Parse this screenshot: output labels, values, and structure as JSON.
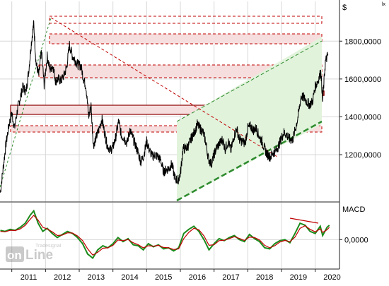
{
  "chart_data": [
    {
      "type": "line",
      "title": "",
      "currency_label": "$",
      "corner_mark": "lx",
      "xlabel": "",
      "ylabel": "",
      "years": [
        "2011",
        "2012",
        "2013",
        "2014",
        "2015",
        "2016",
        "2017",
        "2018",
        "2019",
        "2020"
      ],
      "xlim": [
        2010.65,
        2020.72
      ],
      "ylim": [
        950,
        2010
      ],
      "yticks": [
        1200,
        1400,
        1600,
        1800
      ],
      "ytick_labels": [
        "1200,0000",
        "1400,0000",
        "1600,0000",
        "1800,0000"
      ],
      "grid": true,
      "series": [
        {
          "color": "#000000",
          "points": [
            [
              2010.66,
              1000
            ],
            [
              2010.75,
              1140
            ],
            [
              2010.83,
              1260
            ],
            [
              2010.92,
              1360
            ],
            [
              2011.0,
              1420
            ],
            [
              2011.08,
              1340
            ],
            [
              2011.17,
              1440
            ],
            [
              2011.25,
              1500
            ],
            [
              2011.33,
              1560
            ],
            [
              2011.42,
              1530
            ],
            [
              2011.5,
              1640
            ],
            [
              2011.58,
              1790
            ],
            [
              2011.65,
              1895
            ],
            [
              2011.72,
              1680
            ],
            [
              2011.8,
              1620
            ],
            [
              2011.88,
              1745
            ],
            [
              2011.96,
              1570
            ],
            [
              2012.05,
              1720
            ],
            [
              2012.13,
              1650
            ],
            [
              2012.22,
              1670
            ],
            [
              2012.3,
              1590
            ],
            [
              2012.38,
              1600
            ],
            [
              2012.46,
              1590
            ],
            [
              2012.55,
              1620
            ],
            [
              2012.63,
              1665
            ],
            [
              2012.71,
              1780
            ],
            [
              2012.8,
              1720
            ],
            [
              2012.88,
              1700
            ],
            [
              2012.96,
              1675
            ],
            [
              2013.05,
              1670
            ],
            [
              2013.13,
              1600
            ],
            [
              2013.2,
              1560
            ],
            [
              2013.28,
              1400
            ],
            [
              2013.35,
              1460
            ],
            [
              2013.42,
              1250
            ],
            [
              2013.5,
              1290
            ],
            [
              2013.58,
              1330
            ],
            [
              2013.67,
              1390
            ],
            [
              2013.75,
              1320
            ],
            [
              2013.83,
              1250
            ],
            [
              2013.92,
              1225
            ],
            [
              2014.0,
              1240
            ],
            [
              2014.08,
              1290
            ],
            [
              2014.17,
              1380
            ],
            [
              2014.25,
              1300
            ],
            [
              2014.33,
              1290
            ],
            [
              2014.42,
              1260
            ],
            [
              2014.5,
              1330
            ],
            [
              2014.58,
              1295
            ],
            [
              2014.67,
              1250
            ],
            [
              2014.75,
              1210
            ],
            [
              2014.83,
              1160
            ],
            [
              2014.92,
              1200
            ],
            [
              2015.0,
              1270
            ],
            [
              2015.08,
              1225
            ],
            [
              2015.17,
              1190
            ],
            [
              2015.25,
              1200
            ],
            [
              2015.33,
              1190
            ],
            [
              2015.42,
              1170
            ],
            [
              2015.5,
              1110
            ],
            [
              2015.58,
              1120
            ],
            [
              2015.67,
              1130
            ],
            [
              2015.75,
              1150
            ],
            [
              2015.83,
              1080
            ],
            [
              2015.92,
              1060
            ],
            [
              2016.0,
              1100
            ],
            [
              2016.08,
              1230
            ],
            [
              2016.17,
              1235
            ],
            [
              2016.25,
              1250
            ],
            [
              2016.33,
              1290
            ],
            [
              2016.42,
              1320
            ],
            [
              2016.5,
              1360
            ],
            [
              2016.58,
              1340
            ],
            [
              2016.67,
              1320
            ],
            [
              2016.75,
              1270
            ],
            [
              2016.83,
              1180
            ],
            [
              2016.92,
              1150
            ],
            [
              2017.0,
              1200
            ],
            [
              2017.08,
              1240
            ],
            [
              2017.17,
              1260
            ],
            [
              2017.25,
              1280
            ],
            [
              2017.33,
              1230
            ],
            [
              2017.42,
              1270
            ],
            [
              2017.5,
              1220
            ],
            [
              2017.58,
              1290
            ],
            [
              2017.67,
              1340
            ],
            [
              2017.75,
              1280
            ],
            [
              2017.83,
              1270
            ],
            [
              2017.92,
              1260
            ],
            [
              2018.0,
              1340
            ],
            [
              2018.08,
              1350
            ],
            [
              2018.17,
              1330
            ],
            [
              2018.25,
              1340
            ],
            [
              2018.33,
              1300
            ],
            [
              2018.42,
              1270
            ],
            [
              2018.5,
              1230
            ],
            [
              2018.58,
              1200
            ],
            [
              2018.67,
              1190
            ],
            [
              2018.75,
              1210
            ],
            [
              2018.83,
              1220
            ],
            [
              2018.92,
              1250
            ],
            [
              2019.0,
              1290
            ],
            [
              2019.08,
              1320
            ],
            [
              2019.17,
              1300
            ],
            [
              2019.25,
              1280
            ],
            [
              2019.33,
              1280
            ],
            [
              2019.42,
              1340
            ],
            [
              2019.5,
              1410
            ],
            [
              2019.58,
              1510
            ],
            [
              2019.67,
              1500
            ],
            [
              2019.75,
              1480
            ],
            [
              2019.83,
              1465
            ],
            [
              2019.92,
              1480
            ],
            [
              2020.0,
              1560
            ],
            [
              2020.08,
              1590
            ],
            [
              2020.17,
              1640
            ],
            [
              2020.22,
              1480
            ],
            [
              2020.3,
              1690
            ],
            [
              2020.38,
              1730
            ]
          ]
        }
      ],
      "overlay_color_red": "#c00000",
      "overlay_color_green": "#2e8b2e",
      "zone_fill_red": "#f6dede",
      "zone_fill_green": "#e2f3dc"
    },
    {
      "type": "line",
      "title": "MACD",
      "xlim": [
        2010.65,
        2020.72
      ],
      "ylim": [
        -140,
        180
      ],
      "yticks": [
        0
      ],
      "ytick_labels": [
        "0,0000"
      ],
      "grid": true,
      "series": [
        {
          "color": "#1a8a1a",
          "points": [
            [
              2010.66,
              45
            ],
            [
              2010.8,
              40
            ],
            [
              2010.95,
              50
            ],
            [
              2011.1,
              45
            ],
            [
              2011.25,
              60
            ],
            [
              2011.4,
              80
            ],
            [
              2011.55,
              120
            ],
            [
              2011.65,
              140
            ],
            [
              2011.78,
              80
            ],
            [
              2011.92,
              40
            ],
            [
              2012.05,
              55
            ],
            [
              2012.2,
              30
            ],
            [
              2012.35,
              10
            ],
            [
              2012.5,
              25
            ],
            [
              2012.65,
              40
            ],
            [
              2012.8,
              30
            ],
            [
              2012.95,
              10
            ],
            [
              2013.1,
              -20
            ],
            [
              2013.25,
              -70
            ],
            [
              2013.4,
              -90
            ],
            [
              2013.55,
              -50
            ],
            [
              2013.7,
              -30
            ],
            [
              2013.85,
              -40
            ],
            [
              2014.0,
              -20
            ],
            [
              2014.15,
              10
            ],
            [
              2014.3,
              -10
            ],
            [
              2014.45,
              5
            ],
            [
              2014.6,
              -25
            ],
            [
              2014.75,
              -30
            ],
            [
              2014.9,
              -50
            ],
            [
              2015.05,
              -20
            ],
            [
              2015.2,
              -35
            ],
            [
              2015.35,
              -25
            ],
            [
              2015.5,
              -45
            ],
            [
              2015.65,
              -40
            ],
            [
              2015.8,
              -55
            ],
            [
              2015.95,
              -40
            ],
            [
              2016.1,
              30
            ],
            [
              2016.25,
              50
            ],
            [
              2016.4,
              65
            ],
            [
              2016.55,
              40
            ],
            [
              2016.7,
              0
            ],
            [
              2016.85,
              -50
            ],
            [
              2017.0,
              -20
            ],
            [
              2017.15,
              5
            ],
            [
              2017.3,
              -5
            ],
            [
              2017.45,
              10
            ],
            [
              2017.6,
              20
            ],
            [
              2017.75,
              0
            ],
            [
              2017.9,
              -10
            ],
            [
              2018.05,
              25
            ],
            [
              2018.2,
              5
            ],
            [
              2018.35,
              -10
            ],
            [
              2018.5,
              -40
            ],
            [
              2018.65,
              -45
            ],
            [
              2018.8,
              -20
            ],
            [
              2018.95,
              -5
            ],
            [
              2019.1,
              0
            ],
            [
              2019.25,
              -15
            ],
            [
              2019.4,
              30
            ],
            [
              2019.55,
              80
            ],
            [
              2019.7,
              70
            ],
            [
              2019.85,
              40
            ],
            [
              2020.0,
              30
            ],
            [
              2020.15,
              65
            ],
            [
              2020.22,
              20
            ],
            [
              2020.35,
              60
            ],
            [
              2020.42,
              70
            ]
          ]
        },
        {
          "color": "#c00000",
          "points": [
            [
              2010.66,
              40
            ],
            [
              2010.8,
              38
            ],
            [
              2010.95,
              45
            ],
            [
              2011.1,
              44
            ],
            [
              2011.25,
              52
            ],
            [
              2011.4,
              70
            ],
            [
              2011.55,
              100
            ],
            [
              2011.65,
              118
            ],
            [
              2011.78,
              95
            ],
            [
              2011.92,
              60
            ],
            [
              2012.05,
              52
            ],
            [
              2012.2,
              38
            ],
            [
              2012.35,
              20
            ],
            [
              2012.5,
              22
            ],
            [
              2012.65,
              33
            ],
            [
              2012.8,
              32
            ],
            [
              2012.95,
              18
            ],
            [
              2013.1,
              -5
            ],
            [
              2013.25,
              -45
            ],
            [
              2013.4,
              -75
            ],
            [
              2013.55,
              -62
            ],
            [
              2013.7,
              -42
            ],
            [
              2013.85,
              -40
            ],
            [
              2014.0,
              -28
            ],
            [
              2014.15,
              -2
            ],
            [
              2014.3,
              -5
            ],
            [
              2014.45,
              0
            ],
            [
              2014.6,
              -15
            ],
            [
              2014.75,
              -25
            ],
            [
              2014.9,
              -40
            ],
            [
              2015.05,
              -30
            ],
            [
              2015.2,
              -32
            ],
            [
              2015.35,
              -28
            ],
            [
              2015.5,
              -38
            ],
            [
              2015.65,
              -40
            ],
            [
              2015.8,
              -48
            ],
            [
              2015.95,
              -45
            ],
            [
              2016.1,
              5
            ],
            [
              2016.25,
              35
            ],
            [
              2016.4,
              55
            ],
            [
              2016.55,
              48
            ],
            [
              2016.7,
              18
            ],
            [
              2016.85,
              -28
            ],
            [
              2017.0,
              -25
            ],
            [
              2017.15,
              -5
            ],
            [
              2017.3,
              -3
            ],
            [
              2017.45,
              5
            ],
            [
              2017.6,
              14
            ],
            [
              2017.75,
              6
            ],
            [
              2017.9,
              -4
            ],
            [
              2018.05,
              12
            ],
            [
              2018.2,
              10
            ],
            [
              2018.35,
              -2
            ],
            [
              2018.5,
              -28
            ],
            [
              2018.65,
              -40
            ],
            [
              2018.8,
              -30
            ],
            [
              2018.95,
              -12
            ],
            [
              2019.1,
              -4
            ],
            [
              2019.25,
              -10
            ],
            [
              2019.4,
              12
            ],
            [
              2019.55,
              55
            ],
            [
              2019.7,
              68
            ],
            [
              2019.85,
              50
            ],
            [
              2020.0,
              38
            ],
            [
              2020.15,
              52
            ],
            [
              2020.22,
              35
            ],
            [
              2020.35,
              48
            ],
            [
              2020.42,
              60
            ]
          ]
        }
      ]
    }
  ],
  "watermark": {
    "main_left": "on",
    "main_right": "Line",
    "small": "Tradesignal"
  }
}
